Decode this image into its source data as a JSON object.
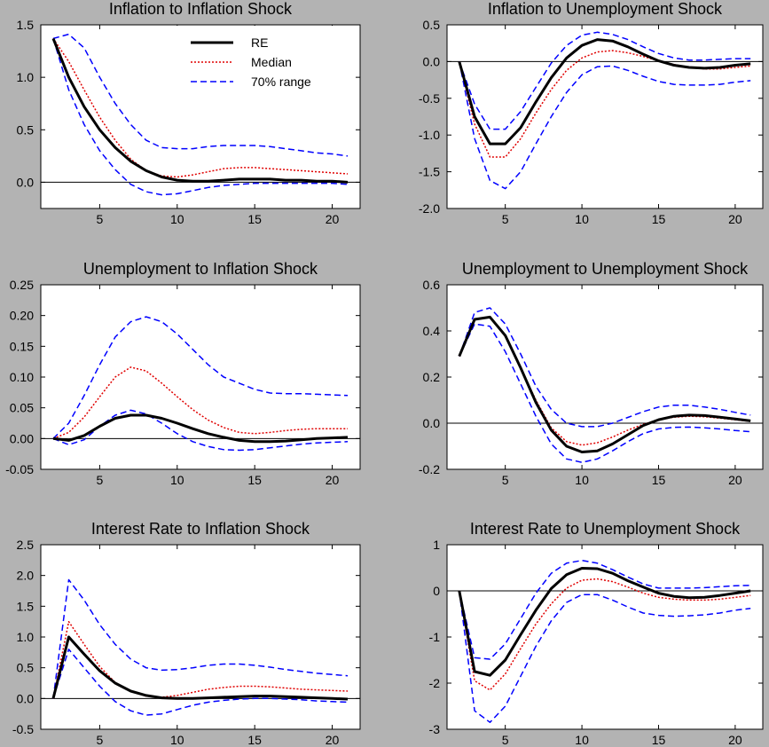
{
  "figure": {
    "background": "#b3b3b3",
    "plot_background": "#ffffff",
    "colors": {
      "RE": "#000000",
      "Median": "#e00000",
      "70% range": "#0000ff"
    }
  },
  "legend": {
    "labels": [
      "RE",
      "Median",
      "70% range"
    ],
    "placement": "top-right of first panel"
  },
  "chart_data": [
    {
      "type": "line",
      "title": "Inflation to Inflation Shock",
      "xlim": [
        1.2,
        21.8
      ],
      "ylim": [
        -0.25,
        1.5
      ],
      "xticks": [
        5,
        10,
        15,
        20
      ],
      "xtick_labels": [
        "5",
        "10",
        "15",
        "20"
      ],
      "yticks": [
        0,
        0.5,
        1.0,
        1.5
      ],
      "ytick_labels": [
        "0.0",
        "0.5",
        "1.0",
        "1.5"
      ],
      "x": [
        2,
        3,
        4,
        5,
        6,
        7,
        8,
        9,
        10,
        11,
        12,
        13,
        14,
        15,
        16,
        17,
        18,
        19,
        20,
        21
      ],
      "series": [
        {
          "name": "RE",
          "values": [
            1.37,
            1.0,
            0.72,
            0.5,
            0.33,
            0.2,
            0.11,
            0.05,
            0.02,
            0.01,
            0.01,
            0.02,
            0.03,
            0.03,
            0.03,
            0.02,
            0.02,
            0.01,
            0.01,
            0.0
          ]
        },
        {
          "name": "Median",
          "values": [
            1.37,
            1.15,
            0.88,
            0.62,
            0.4,
            0.22,
            0.11,
            0.06,
            0.05,
            0.07,
            0.1,
            0.13,
            0.14,
            0.14,
            0.13,
            0.12,
            0.11,
            0.1,
            0.09,
            0.08
          ]
        },
        {
          "name": "70% range",
          "role": "upper",
          "values": [
            1.37,
            1.41,
            1.28,
            1.0,
            0.75,
            0.55,
            0.4,
            0.33,
            0.32,
            0.32,
            0.34,
            0.35,
            0.35,
            0.35,
            0.34,
            0.32,
            0.3,
            0.28,
            0.27,
            0.25
          ]
        },
        {
          "name": "70% range",
          "role": "lower",
          "values": [
            1.37,
            0.88,
            0.55,
            0.3,
            0.12,
            -0.02,
            -0.09,
            -0.12,
            -0.11,
            -0.08,
            -0.05,
            -0.03,
            -0.02,
            -0.01,
            -0.01,
            -0.01,
            -0.01,
            -0.01,
            -0.01,
            -0.02
          ]
        }
      ]
    },
    {
      "type": "line",
      "title": "Inflation to Unemployment Shock",
      "xlim": [
        1.2,
        21.8
      ],
      "ylim": [
        -2.0,
        0.5
      ],
      "xticks": [
        5,
        10,
        15,
        20
      ],
      "xtick_labels": [
        "5",
        "10",
        "15",
        "20"
      ],
      "yticks": [
        -2.0,
        -1.5,
        -1.0,
        -0.5,
        0,
        0.5
      ],
      "ytick_labels": [
        "-2.0",
        "-1.5",
        "-1.0",
        "-0.5",
        "0.0",
        "0.5"
      ],
      "x": [
        2,
        3,
        4,
        5,
        6,
        7,
        8,
        9,
        10,
        11,
        12,
        13,
        14,
        15,
        16,
        17,
        18,
        19,
        20,
        21
      ],
      "series": [
        {
          "name": "RE",
          "values": [
            0.0,
            -0.75,
            -1.12,
            -1.12,
            -0.9,
            -0.55,
            -0.22,
            0.05,
            0.22,
            0.3,
            0.28,
            0.2,
            0.1,
            0.01,
            -0.05,
            -0.08,
            -0.09,
            -0.08,
            -0.05,
            -0.03
          ]
        },
        {
          "name": "Median",
          "values": [
            0.0,
            -0.85,
            -1.3,
            -1.3,
            -1.05,
            -0.7,
            -0.38,
            -0.12,
            0.05,
            0.13,
            0.15,
            0.12,
            0.07,
            0.01,
            -0.04,
            -0.08,
            -0.1,
            -0.1,
            -0.08,
            -0.06
          ]
        },
        {
          "name": "70% range",
          "role": "upper",
          "values": [
            0.0,
            -0.58,
            -0.92,
            -0.92,
            -0.68,
            -0.35,
            -0.02,
            0.22,
            0.36,
            0.4,
            0.37,
            0.3,
            0.2,
            0.11,
            0.05,
            0.02,
            0.02,
            0.03,
            0.04,
            0.04
          ]
        },
        {
          "name": "70% range",
          "role": "lower",
          "values": [
            0.0,
            -1.05,
            -1.62,
            -1.73,
            -1.5,
            -1.12,
            -0.75,
            -0.42,
            -0.18,
            -0.07,
            -0.06,
            -0.12,
            -0.2,
            -0.27,
            -0.31,
            -0.32,
            -0.32,
            -0.31,
            -0.28,
            -0.26
          ]
        }
      ]
    },
    {
      "type": "line",
      "title": "Unemployment to Inflation Shock",
      "xlim": [
        1.2,
        21.8
      ],
      "ylim": [
        -0.05,
        0.25
      ],
      "xticks": [
        5,
        10,
        15,
        20
      ],
      "xtick_labels": [
        "5",
        "10",
        "15",
        "20"
      ],
      "yticks": [
        -0.05,
        0,
        0.05,
        0.1,
        0.15,
        0.2,
        0.25
      ],
      "ytick_labels": [
        "-0.05",
        "0.00",
        "0.05",
        "0.10",
        "0.15",
        "0.20",
        "0.25"
      ],
      "x": [
        2,
        3,
        4,
        5,
        6,
        7,
        8,
        9,
        10,
        11,
        12,
        13,
        14,
        15,
        16,
        17,
        18,
        19,
        20,
        21
      ],
      "series": [
        {
          "name": "RE",
          "values": [
            0.0,
            -0.003,
            0.005,
            0.02,
            0.033,
            0.038,
            0.038,
            0.033,
            0.025,
            0.016,
            0.008,
            0.002,
            -0.003,
            -0.005,
            -0.005,
            -0.004,
            -0.002,
            0.0,
            0.001,
            0.002
          ]
        },
        {
          "name": "Median",
          "values": [
            0.0,
            0.01,
            0.035,
            0.068,
            0.1,
            0.116,
            0.11,
            0.09,
            0.068,
            0.047,
            0.03,
            0.018,
            0.01,
            0.008,
            0.01,
            0.013,
            0.015,
            0.016,
            0.016,
            0.016
          ]
        },
        {
          "name": "70% range",
          "role": "upper",
          "values": [
            0.0,
            0.025,
            0.07,
            0.12,
            0.165,
            0.19,
            0.198,
            0.19,
            0.17,
            0.145,
            0.12,
            0.1,
            0.09,
            0.08,
            0.074,
            0.073,
            0.073,
            0.072,
            0.071,
            0.07
          ]
        },
        {
          "name": "70% range",
          "role": "lower",
          "values": [
            0.0,
            -0.01,
            -0.002,
            0.02,
            0.038,
            0.046,
            0.04,
            0.025,
            0.008,
            -0.005,
            -0.013,
            -0.018,
            -0.019,
            -0.018,
            -0.015,
            -0.012,
            -0.009,
            -0.007,
            -0.006,
            -0.005
          ]
        }
      ]
    },
    {
      "type": "line",
      "title": "Unemployment to Unemployment Shock",
      "xlim": [
        1.2,
        21.8
      ],
      "ylim": [
        -0.2,
        0.6
      ],
      "xticks": [
        5,
        10,
        15,
        20
      ],
      "xtick_labels": [
        "5",
        "10",
        "15",
        "20"
      ],
      "yticks": [
        -0.2,
        0,
        0.2,
        0.4,
        0.6
      ],
      "ytick_labels": [
        "-0.2",
        "0.0",
        "0.2",
        "0.4",
        "0.6"
      ],
      "x": [
        2,
        3,
        4,
        5,
        6,
        7,
        8,
        9,
        10,
        11,
        12,
        13,
        14,
        15,
        16,
        17,
        18,
        19,
        20,
        21
      ],
      "series": [
        {
          "name": "RE",
          "values": [
            0.29,
            0.45,
            0.46,
            0.38,
            0.24,
            0.09,
            -0.03,
            -0.1,
            -0.125,
            -0.12,
            -0.09,
            -0.05,
            -0.01,
            0.015,
            0.03,
            0.035,
            0.033,
            0.026,
            0.018,
            0.01
          ]
        },
        {
          "name": "Median",
          "values": [
            0.29,
            0.45,
            0.46,
            0.375,
            0.24,
            0.1,
            -0.02,
            -0.08,
            -0.095,
            -0.085,
            -0.06,
            -0.03,
            -0.005,
            0.015,
            0.026,
            0.03,
            0.028,
            0.022,
            0.015,
            0.008
          ]
        },
        {
          "name": "70% range",
          "role": "upper",
          "values": [
            0.29,
            0.48,
            0.5,
            0.43,
            0.3,
            0.16,
            0.06,
            0.0,
            -0.015,
            -0.015,
            0.0,
            0.025,
            0.05,
            0.07,
            0.078,
            0.078,
            0.07,
            0.06,
            0.047,
            0.035
          ]
        },
        {
          "name": "70% range",
          "role": "lower",
          "values": [
            0.29,
            0.43,
            0.42,
            0.31,
            0.17,
            0.03,
            -0.09,
            -0.155,
            -0.17,
            -0.155,
            -0.12,
            -0.08,
            -0.045,
            -0.025,
            -0.018,
            -0.017,
            -0.02,
            -0.025,
            -0.032,
            -0.037
          ]
        }
      ]
    },
    {
      "type": "line",
      "title": "Interest Rate to Inflation Shock",
      "xlim": [
        1.2,
        21.8
      ],
      "ylim": [
        -0.5,
        2.5
      ],
      "xticks": [
        5,
        10,
        15,
        20
      ],
      "xtick_labels": [
        "5",
        "10",
        "15",
        "20"
      ],
      "yticks": [
        -0.5,
        0,
        0.5,
        1.0,
        1.5,
        2.0,
        2.5
      ],
      "ytick_labels": [
        "-0.5",
        "0.0",
        "0.5",
        "1.0",
        "1.5",
        "2.0",
        "2.5"
      ],
      "x": [
        2,
        3,
        4,
        5,
        6,
        7,
        8,
        9,
        10,
        11,
        12,
        13,
        14,
        15,
        16,
        17,
        18,
        19,
        20,
        21
      ],
      "series": [
        {
          "name": "RE",
          "values": [
            0.0,
            1.0,
            0.72,
            0.45,
            0.25,
            0.12,
            0.05,
            0.01,
            0.0,
            0.0,
            0.01,
            0.02,
            0.03,
            0.04,
            0.04,
            0.03,
            0.02,
            0.01,
            0.0,
            -0.01
          ]
        },
        {
          "name": "Median",
          "values": [
            0.0,
            1.25,
            0.88,
            0.52,
            0.26,
            0.12,
            0.04,
            0.02,
            0.05,
            0.1,
            0.15,
            0.18,
            0.2,
            0.2,
            0.19,
            0.17,
            0.15,
            0.14,
            0.13,
            0.12
          ]
        },
        {
          "name": "70% range",
          "role": "upper",
          "values": [
            0.0,
            1.93,
            1.6,
            1.2,
            0.88,
            0.64,
            0.5,
            0.46,
            0.47,
            0.5,
            0.54,
            0.56,
            0.56,
            0.54,
            0.51,
            0.47,
            0.44,
            0.41,
            0.39,
            0.37
          ]
        },
        {
          "name": "70% range",
          "role": "lower",
          "values": [
            0.0,
            0.8,
            0.5,
            0.2,
            -0.05,
            -0.2,
            -0.27,
            -0.25,
            -0.18,
            -0.11,
            -0.06,
            -0.03,
            -0.01,
            0.0,
            0.0,
            -0.01,
            -0.02,
            -0.04,
            -0.05,
            -0.06
          ]
        }
      ]
    },
    {
      "type": "line",
      "title": "Interest Rate to Unemployment Shock",
      "xlim": [
        1.2,
        21.8
      ],
      "ylim": [
        -3,
        1
      ],
      "xticks": [
        5,
        10,
        15,
        20
      ],
      "xtick_labels": [
        "5",
        "10",
        "15",
        "20"
      ],
      "yticks": [
        -3,
        -2,
        -1,
        0,
        1
      ],
      "ytick_labels": [
        "-3",
        "-2",
        "-1",
        "0",
        "1"
      ],
      "x": [
        2,
        3,
        4,
        5,
        6,
        7,
        8,
        9,
        10,
        11,
        12,
        13,
        14,
        15,
        16,
        17,
        18,
        19,
        20,
        21
      ],
      "series": [
        {
          "name": "RE",
          "values": [
            0.0,
            -1.75,
            -1.83,
            -1.5,
            -0.95,
            -0.42,
            0.05,
            0.35,
            0.49,
            0.48,
            0.38,
            0.22,
            0.08,
            -0.05,
            -0.12,
            -0.15,
            -0.14,
            -0.1,
            -0.05,
            0.0
          ]
        },
        {
          "name": "Median",
          "values": [
            0.0,
            -1.95,
            -2.15,
            -1.8,
            -1.25,
            -0.72,
            -0.28,
            0.06,
            0.23,
            0.26,
            0.2,
            0.08,
            -0.05,
            -0.14,
            -0.18,
            -0.2,
            -0.2,
            -0.18,
            -0.14,
            -0.1
          ]
        },
        {
          "name": "70% range",
          "role": "upper",
          "values": [
            0.0,
            -1.45,
            -1.48,
            -1.15,
            -0.6,
            -0.05,
            0.38,
            0.6,
            0.66,
            0.6,
            0.46,
            0.3,
            0.15,
            0.06,
            0.06,
            0.06,
            0.07,
            0.09,
            0.11,
            0.12
          ]
        },
        {
          "name": "70% range",
          "role": "lower",
          "values": [
            0.0,
            -2.6,
            -2.85,
            -2.5,
            -1.85,
            -1.2,
            -0.65,
            -0.25,
            -0.08,
            -0.08,
            -0.2,
            -0.35,
            -0.48,
            -0.53,
            -0.55,
            -0.54,
            -0.52,
            -0.48,
            -0.42,
            -0.38
          ]
        }
      ]
    }
  ]
}
